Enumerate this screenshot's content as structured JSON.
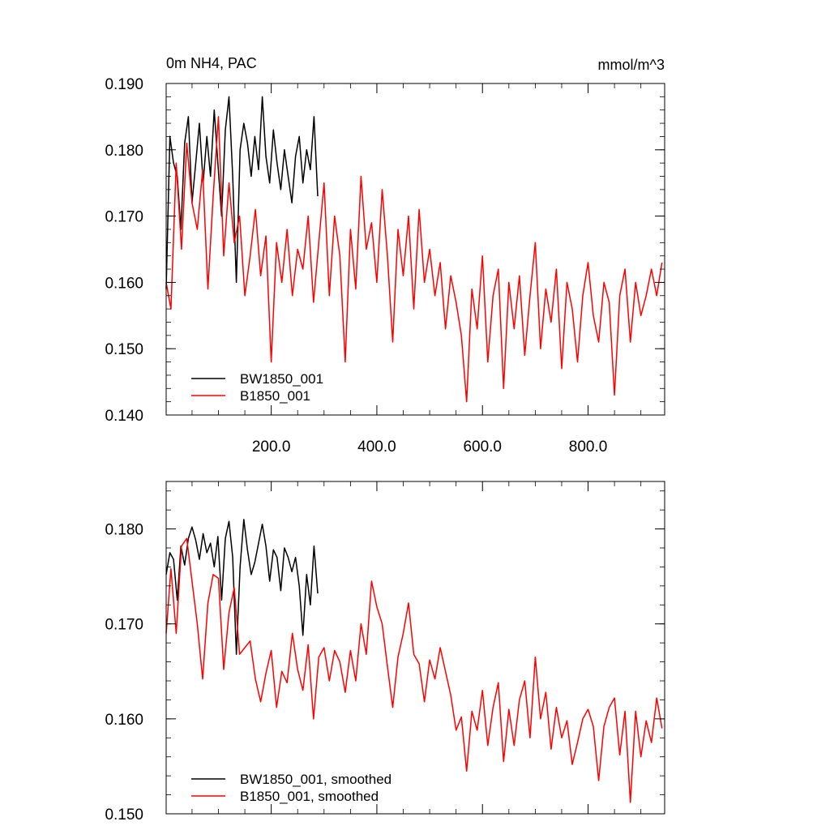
{
  "chart_data": [
    {
      "type": "line",
      "title": "0m NH4, PAC",
      "units": "mmol/m^3",
      "xlim": [
        1,
        945
      ],
      "ylim": [
        0.14,
        0.19
      ],
      "x_ticks": [
        "200.0",
        "400.0",
        "600.0",
        "800.0"
      ],
      "x_tick_values": [
        200,
        400,
        600,
        800
      ],
      "y_ticks": [
        "0.140",
        "0.150",
        "0.160",
        "0.170",
        "0.180",
        "0.190"
      ],
      "y_tick_values": [
        0.14,
        0.15,
        0.16,
        0.17,
        0.18,
        0.19
      ],
      "legend_position": "bottom-left",
      "series": [
        {
          "name": "BW1850_001",
          "color": "#000000",
          "x": [
            1,
            8,
            15,
            22,
            29,
            36,
            43,
            50,
            57,
            64,
            71,
            78,
            85,
            92,
            99,
            106,
            113,
            120,
            127,
            134,
            141,
            148,
            155,
            162,
            169,
            176,
            183,
            190,
            197,
            204,
            211,
            218,
            225,
            232,
            239,
            246,
            253,
            260,
            267,
            274,
            281,
            288
          ],
          "y": [
            0.159,
            0.182,
            0.178,
            0.176,
            0.168,
            0.181,
            0.185,
            0.172,
            0.178,
            0.184,
            0.175,
            0.182,
            0.176,
            0.186,
            0.178,
            0.17,
            0.183,
            0.188,
            0.176,
            0.16,
            0.18,
            0.184,
            0.181,
            0.176,
            0.182,
            0.177,
            0.188,
            0.179,
            0.175,
            0.183,
            0.178,
            0.174,
            0.18,
            0.176,
            0.172,
            0.179,
            0.182,
            0.175,
            0.18,
            0.177,
            0.185,
            0.173
          ]
        },
        {
          "name": "B1850_001",
          "color": "#ff0000",
          "x": [
            1,
            10,
            20,
            30,
            40,
            50,
            60,
            70,
            80,
            90,
            100,
            110,
            120,
            130,
            140,
            150,
            160,
            170,
            180,
            190,
            200,
            210,
            220,
            230,
            240,
            250,
            260,
            270,
            280,
            290,
            300,
            310,
            320,
            330,
            340,
            350,
            360,
            370,
            380,
            390,
            400,
            410,
            420,
            430,
            440,
            450,
            460,
            470,
            480,
            490,
            500,
            510,
            520,
            530,
            540,
            550,
            560,
            570,
            580,
            590,
            600,
            610,
            620,
            630,
            640,
            650,
            660,
            670,
            680,
            690,
            700,
            710,
            720,
            730,
            740,
            750,
            760,
            770,
            780,
            790,
            800,
            810,
            820,
            830,
            840,
            850,
            860,
            870,
            880,
            890,
            900,
            910,
            920,
            930,
            940
          ],
          "y": [
            0.16,
            0.156,
            0.178,
            0.165,
            0.181,
            0.172,
            0.168,
            0.177,
            0.159,
            0.173,
            0.185,
            0.164,
            0.175,
            0.166,
            0.17,
            0.158,
            0.164,
            0.171,
            0.161,
            0.167,
            0.148,
            0.166,
            0.16,
            0.168,
            0.158,
            0.165,
            0.162,
            0.17,
            0.157,
            0.166,
            0.175,
            0.158,
            0.17,
            0.164,
            0.148,
            0.168,
            0.159,
            0.176,
            0.165,
            0.169,
            0.16,
            0.174,
            0.164,
            0.151,
            0.168,
            0.161,
            0.17,
            0.156,
            0.171,
            0.16,
            0.165,
            0.158,
            0.163,
            0.153,
            0.161,
            0.157,
            0.152,
            0.142,
            0.159,
            0.153,
            0.164,
            0.148,
            0.158,
            0.162,
            0.144,
            0.16,
            0.153,
            0.161,
            0.149,
            0.158,
            0.166,
            0.15,
            0.159,
            0.154,
            0.162,
            0.147,
            0.16,
            0.156,
            0.148,
            0.158,
            0.163,
            0.155,
            0.151,
            0.16,
            0.157,
            0.143,
            0.158,
            0.162,
            0.151,
            0.16,
            0.155,
            0.158,
            0.162,
            0.158,
            0.163
          ]
        }
      ]
    },
    {
      "type": "line",
      "xlim": [
        1,
        945
      ],
      "ylim": [
        0.15,
        0.185
      ],
      "y_ticks": [
        "0.150",
        "0.160",
        "0.170",
        "0.180"
      ],
      "y_tick_values": [
        0.15,
        0.16,
        0.17,
        0.18
      ],
      "legend_position": "bottom-left",
      "series": [
        {
          "name": "BW1850_001, smoothed",
          "color": "#000000",
          "x": [
            1,
            8,
            15,
            22,
            29,
            36,
            43,
            50,
            57,
            64,
            71,
            78,
            85,
            92,
            99,
            106,
            113,
            120,
            127,
            134,
            141,
            148,
            155,
            162,
            169,
            176,
            183,
            190,
            197,
            204,
            211,
            218,
            225,
            232,
            239,
            246,
            253,
            260,
            267,
            274,
            281,
            288
          ],
          "y": [
            0.1752,
            0.1775,
            0.1768,
            0.1725,
            0.1782,
            0.1762,
            0.179,
            0.1802,
            0.1788,
            0.1768,
            0.1795,
            0.1775,
            0.1785,
            0.176,
            0.1792,
            0.1725,
            0.179,
            0.1808,
            0.177,
            0.1668,
            0.176,
            0.181,
            0.1778,
            0.1752,
            0.1765,
            0.1785,
            0.1805,
            0.1782,
            0.1745,
            0.1778,
            0.177,
            0.1735,
            0.178,
            0.177,
            0.1755,
            0.177,
            0.174,
            0.1688,
            0.1752,
            0.172,
            0.1782,
            0.1732
          ]
        },
        {
          "name": "B1850_001, smoothed",
          "color": "#ff0000",
          "x": [
            1,
            10,
            20,
            30,
            40,
            50,
            60,
            70,
            80,
            90,
            100,
            110,
            120,
            130,
            140,
            150,
            160,
            170,
            180,
            190,
            200,
            210,
            220,
            230,
            240,
            250,
            260,
            270,
            280,
            290,
            300,
            310,
            320,
            330,
            340,
            350,
            360,
            370,
            380,
            390,
            400,
            410,
            420,
            430,
            440,
            450,
            460,
            470,
            480,
            490,
            500,
            510,
            520,
            530,
            540,
            550,
            560,
            570,
            580,
            590,
            600,
            610,
            620,
            630,
            640,
            650,
            660,
            670,
            680,
            690,
            700,
            710,
            720,
            730,
            740,
            750,
            760,
            770,
            780,
            790,
            800,
            810,
            820,
            830,
            840,
            850,
            860,
            870,
            880,
            890,
            900,
            910,
            920,
            930,
            940
          ],
          "y": [
            0.169,
            0.1758,
            0.169,
            0.1782,
            0.179,
            0.1745,
            0.17,
            0.1642,
            0.1722,
            0.1752,
            0.1748,
            0.1652,
            0.1712,
            0.1738,
            0.1668,
            0.1675,
            0.1682,
            0.1642,
            0.1618,
            0.1648,
            0.1672,
            0.1612,
            0.165,
            0.1638,
            0.169,
            0.1652,
            0.163,
            0.1678,
            0.16,
            0.1665,
            0.1675,
            0.164,
            0.1672,
            0.166,
            0.1628,
            0.1672,
            0.164,
            0.17,
            0.1668,
            0.1745,
            0.1718,
            0.17,
            0.1655,
            0.1612,
            0.1665,
            0.169,
            0.1722,
            0.1668,
            0.1658,
            0.1618,
            0.1662,
            0.1642,
            0.1675,
            0.165,
            0.1625,
            0.1588,
            0.1602,
            0.1545,
            0.1608,
            0.1588,
            0.163,
            0.1572,
            0.1612,
            0.1638,
            0.1555,
            0.161,
            0.1572,
            0.162,
            0.164,
            0.158,
            0.1665,
            0.16,
            0.1628,
            0.1568,
            0.1612,
            0.158,
            0.1598,
            0.1552,
            0.1575,
            0.16,
            0.161,
            0.1592,
            0.1535,
            0.1592,
            0.1612,
            0.1622,
            0.1562,
            0.1608,
            0.1512,
            0.1608,
            0.156,
            0.1598,
            0.1575,
            0.1622,
            0.159
          ]
        }
      ]
    }
  ]
}
